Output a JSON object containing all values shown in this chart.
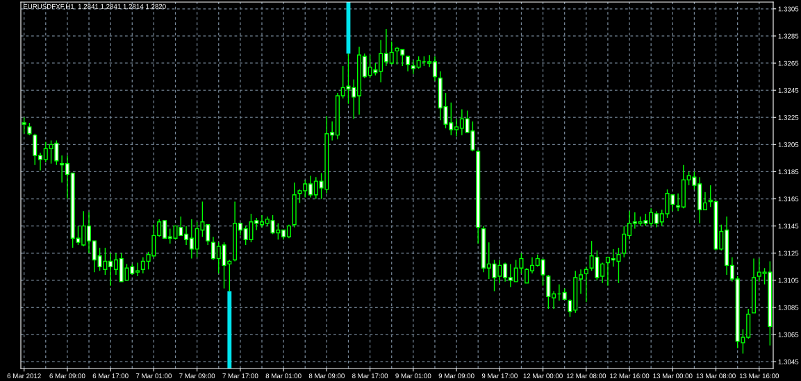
{
  "chart_data": {
    "type": "candlestick",
    "title": "EURUSDFXF,H1  1.2841 1.2841 1.2814 1.2820",
    "color": "#00ff00",
    "grid": true,
    "categories": [
      "6 Mar 2012",
      null,
      null,
      null,
      null,
      null,
      null,
      null,
      "6 Mar 09:00",
      null,
      null,
      null,
      null,
      null,
      null,
      null,
      "6 Mar 17:00",
      null,
      null,
      null,
      null,
      null,
      null,
      null,
      "7 Mar 01:00",
      null,
      null,
      null,
      null,
      null,
      null,
      null,
      "7 Mar 09:00",
      null,
      null,
      null,
      null,
      null,
      null,
      null,
      "7 Mar 17:00",
      null,
      null,
      null,
      null,
      null,
      null,
      null,
      "8 Mar 01:00",
      null,
      null,
      null,
      null,
      null,
      null,
      null,
      "8 Mar 09:00",
      null,
      null,
      null,
      null,
      null,
      null,
      null,
      "8 Mar 17:00",
      null,
      null,
      null,
      null,
      null,
      null,
      null,
      "9 Mar 01:00",
      null,
      null,
      null,
      null,
      null,
      null,
      null,
      "9 Mar 09:00",
      null,
      null,
      null,
      null,
      null,
      null,
      null,
      "9 Mar 17:00",
      null,
      null,
      null,
      null,
      null,
      null,
      null,
      "12 Mar 00:00",
      null,
      null,
      null,
      null,
      null,
      null,
      null,
      "12 Mar 08:00",
      null,
      null,
      null,
      null,
      null,
      null,
      null,
      "12 Mar 16:00",
      null,
      null,
      null,
      null,
      null,
      null,
      null,
      "13 Mar 00:00",
      null,
      null,
      null,
      null,
      null,
      null,
      null,
      "13 Mar 08:00",
      null,
      null,
      null,
      null,
      null,
      null,
      null,
      "13 Mar 16:00",
      null,
      null
    ],
    "ylim": [
      1.304,
      1.331
    ],
    "yticks": [
      1.3045,
      1.3065,
      1.3085,
      1.3105,
      1.3125,
      1.3145,
      1.3165,
      1.3185,
      1.3205,
      1.3225,
      1.3245,
      1.3265,
      1.3285,
      1.3305
    ],
    "ohlc": [
      [
        1.3221,
        1.3225,
        1.3213,
        1.322
      ],
      [
        1.3218,
        1.3221,
        1.3212,
        1.3213
      ],
      [
        1.3212,
        1.3213,
        1.319,
        1.3197
      ],
      [
        1.3197,
        1.3199,
        1.3186,
        1.3194
      ],
      [
        1.3194,
        1.3207,
        1.3192,
        1.3202
      ],
      [
        1.3202,
        1.3208,
        1.3191,
        1.3205
      ],
      [
        1.3206,
        1.3208,
        1.319,
        1.3193
      ],
      [
        1.3191,
        1.3197,
        1.3177,
        1.319
      ],
      [
        1.3191,
        1.3197,
        1.3165,
        1.3183
      ],
      [
        1.3184,
        1.3184,
        1.3129,
        1.3136
      ],
      [
        1.3136,
        1.3145,
        1.3131,
        1.3133
      ],
      [
        1.3131,
        1.3156,
        1.313,
        1.3145
      ],
      [
        1.3145,
        1.3155,
        1.3125,
        1.3134
      ],
      [
        1.3134,
        1.3134,
        1.3111,
        1.312
      ],
      [
        1.3123,
        1.3129,
        1.3112,
        1.3115
      ],
      [
        1.3113,
        1.3129,
        1.3109,
        1.3119
      ],
      [
        1.3119,
        1.3125,
        1.3101,
        1.3115
      ],
      [
        1.3113,
        1.3125,
        1.3109,
        1.312
      ],
      [
        1.3121,
        1.3125,
        1.3104,
        1.3104
      ],
      [
        1.3105,
        1.3117,
        1.3105,
        1.3114
      ],
      [
        1.3115,
        1.3117,
        1.3109,
        1.311
      ],
      [
        1.3111,
        1.3118,
        1.3108,
        1.3112
      ],
      [
        1.3113,
        1.3122,
        1.311,
        1.3119
      ],
      [
        1.3119,
        1.3126,
        1.3113,
        1.3124
      ],
      [
        1.3123,
        1.3146,
        1.3122,
        1.3138
      ],
      [
        1.3138,
        1.315,
        1.3137,
        1.3148
      ],
      [
        1.3149,
        1.3149,
        1.3136,
        1.3136
      ],
      [
        1.3137,
        1.3143,
        1.3132,
        1.3136
      ],
      [
        1.3136,
        1.3145,
        1.3135,
        1.3145
      ],
      [
        1.3144,
        1.3152,
        1.3138,
        1.3138
      ],
      [
        1.3139,
        1.3145,
        1.3131,
        1.3135
      ],
      [
        1.3136,
        1.315,
        1.3121,
        1.3128
      ],
      [
        1.3128,
        1.3148,
        1.3122,
        1.3143
      ],
      [
        1.3142,
        1.3163,
        1.3137,
        1.3148
      ],
      [
        1.3146,
        1.3146,
        1.3131,
        1.3134
      ],
      [
        1.3133,
        1.3137,
        1.312,
        1.3121
      ],
      [
        1.3121,
        1.3133,
        1.311,
        1.313
      ],
      [
        1.3131,
        1.3133,
        1.3099,
        1.3116
      ],
      [
        1.3117,
        1.312,
        1.3097,
        1.3119
      ],
      [
        1.312,
        1.3163,
        1.3119,
        1.3147
      ],
      [
        1.3147,
        1.3147,
        1.3138,
        1.3142
      ],
      [
        1.3143,
        1.3145,
        1.3131,
        1.3135
      ],
      [
        1.3135,
        1.3154,
        1.3133,
        1.3148
      ],
      [
        1.3149,
        1.3151,
        1.3142,
        1.3147
      ],
      [
        1.3146,
        1.3153,
        1.3144,
        1.3148
      ],
      [
        1.3147,
        1.3152,
        1.3145,
        1.315
      ],
      [
        1.3149,
        1.3153,
        1.3139,
        1.314
      ],
      [
        1.314,
        1.3147,
        1.3135,
        1.3142
      ],
      [
        1.3142,
        1.3142,
        1.3135,
        1.3137
      ],
      [
        1.3137,
        1.3146,
        1.3136,
        1.3145
      ],
      [
        1.3146,
        1.3177,
        1.3144,
        1.3168
      ],
      [
        1.3169,
        1.3172,
        1.3162,
        1.3171
      ],
      [
        1.3171,
        1.3179,
        1.3166,
        1.3176
      ],
      [
        1.3176,
        1.3182,
        1.3166,
        1.3168
      ],
      [
        1.3168,
        1.3181,
        1.3165,
        1.3178
      ],
      [
        1.3178,
        1.3184,
        1.3165,
        1.3173
      ],
      [
        1.3172,
        1.3226,
        1.3169,
        1.3213
      ],
      [
        1.3214,
        1.3222,
        1.3208,
        1.3212
      ],
      [
        1.3212,
        1.3243,
        1.3209,
        1.3241
      ],
      [
        1.3241,
        1.3263,
        1.3239,
        1.3247
      ],
      [
        1.3248,
        1.3272,
        1.3235,
        1.3246
      ],
      [
        1.3247,
        1.3253,
        1.3224,
        1.324
      ],
      [
        1.3241,
        1.3277,
        1.3227,
        1.3271
      ],
      [
        1.327,
        1.3272,
        1.3254,
        1.3255
      ],
      [
        1.3256,
        1.3271,
        1.3254,
        1.3262
      ],
      [
        1.326,
        1.3265,
        1.3256,
        1.3258
      ],
      [
        1.3259,
        1.3282,
        1.3251,
        1.3272
      ],
      [
        1.3272,
        1.329,
        1.3263,
        1.3266
      ],
      [
        1.3265,
        1.3281,
        1.3264,
        1.3273
      ],
      [
        1.3274,
        1.3277,
        1.3264,
        1.3276
      ],
      [
        1.3275,
        1.3275,
        1.3263,
        1.3271
      ],
      [
        1.327,
        1.327,
        1.3259,
        1.3264
      ],
      [
        1.3263,
        1.3267,
        1.3257,
        1.3261
      ],
      [
        1.3262,
        1.327,
        1.3261,
        1.3267
      ],
      [
        1.3266,
        1.327,
        1.3263,
        1.3266
      ],
      [
        1.3265,
        1.3271,
        1.3262,
        1.3266
      ],
      [
        1.3266,
        1.327,
        1.3252,
        1.3255
      ],
      [
        1.3254,
        1.3259,
        1.3223,
        1.3232
      ],
      [
        1.3233,
        1.3243,
        1.3217,
        1.322
      ],
      [
        1.3221,
        1.3236,
        1.3212,
        1.3216
      ],
      [
        1.3216,
        1.3224,
        1.3211,
        1.3218
      ],
      [
        1.3217,
        1.3231,
        1.3212,
        1.3224
      ],
      [
        1.3224,
        1.323,
        1.3214,
        1.3214
      ],
      [
        1.3215,
        1.3222,
        1.32,
        1.3201
      ],
      [
        1.32,
        1.3201,
        1.3132,
        1.3144
      ],
      [
        1.3143,
        1.3145,
        1.3111,
        1.3114
      ],
      [
        1.3114,
        1.3133,
        1.3106,
        1.3117
      ],
      [
        1.3117,
        1.312,
        1.3097,
        1.3107
      ],
      [
        1.3108,
        1.312,
        1.3103,
        1.3116
      ],
      [
        1.3117,
        1.3118,
        1.3104,
        1.3107
      ],
      [
        1.3107,
        1.3117,
        1.31,
        1.3105
      ],
      [
        1.3104,
        1.312,
        1.3104,
        1.3114
      ],
      [
        1.3114,
        1.3125,
        1.311,
        1.3121
      ],
      [
        1.3103,
        1.3114,
        1.3103,
        1.3113
      ],
      [
        1.3112,
        1.3122,
        1.311,
        1.3116
      ],
      [
        1.3116,
        1.3124,
        1.3115,
        1.3121
      ],
      [
        1.312,
        1.3121,
        1.3101,
        1.3109
      ],
      [
        1.3108,
        1.3109,
        1.3084,
        1.3093
      ],
      [
        1.3092,
        1.3097,
        1.3084,
        1.3095
      ],
      [
        1.3095,
        1.3102,
        1.309,
        1.3095
      ],
      [
        1.3096,
        1.3099,
        1.3091,
        1.3091
      ],
      [
        1.309,
        1.3091,
        1.3078,
        1.3082
      ],
      [
        1.3083,
        1.3112,
        1.3081,
        1.3107
      ],
      [
        1.3106,
        1.3113,
        1.3095,
        1.3109
      ],
      [
        1.311,
        1.3115,
        1.3089,
        1.3113
      ],
      [
        1.3114,
        1.3134,
        1.3112,
        1.3123
      ],
      [
        1.3122,
        1.3127,
        1.3105,
        1.3107
      ],
      [
        1.3108,
        1.3118,
        1.3103,
        1.3117
      ],
      [
        1.3118,
        1.3122,
        1.3101,
        1.3122
      ],
      [
        1.3121,
        1.3128,
        1.3115,
        1.312
      ],
      [
        1.3119,
        1.3129,
        1.3103,
        1.3124
      ],
      [
        1.3125,
        1.3145,
        1.3122,
        1.3139
      ],
      [
        1.3138,
        1.3156,
        1.3135,
        1.3147
      ],
      [
        1.3148,
        1.3155,
        1.3143,
        1.3147
      ],
      [
        1.3147,
        1.3152,
        1.3145,
        1.3148
      ],
      [
        1.3149,
        1.3154,
        1.3145,
        1.3147
      ],
      [
        1.3147,
        1.3158,
        1.3145,
        1.3155
      ],
      [
        1.3154,
        1.3156,
        1.3144,
        1.3147
      ],
      [
        1.3148,
        1.3157,
        1.3145,
        1.3154
      ],
      [
        1.3154,
        1.3172,
        1.3151,
        1.3169
      ],
      [
        1.3168,
        1.3168,
        1.3156,
        1.3161
      ],
      [
        1.316,
        1.3169,
        1.3156,
        1.3159
      ],
      [
        1.3159,
        1.319,
        1.3158,
        1.3179
      ],
      [
        1.3179,
        1.3185,
        1.3175,
        1.3182
      ],
      [
        1.3181,
        1.3185,
        1.3172,
        1.3175
      ],
      [
        1.3176,
        1.3181,
        1.3147,
        1.3157
      ],
      [
        1.3157,
        1.317,
        1.3157,
        1.3162
      ],
      [
        1.3163,
        1.3175,
        1.3159,
        1.3164
      ],
      [
        1.3163,
        1.3163,
        1.3127,
        1.3128
      ],
      [
        1.3128,
        1.3146,
        1.3127,
        1.3141
      ],
      [
        1.3142,
        1.3152,
        1.3109,
        1.3116
      ],
      [
        1.3116,
        1.3122,
        1.3104,
        1.3106
      ],
      [
        1.3106,
        1.3108,
        1.3055,
        1.306
      ],
      [
        1.3059,
        1.3069,
        1.3051,
        1.3063
      ],
      [
        1.3063,
        1.3084,
        1.3062,
        1.308
      ],
      [
        1.3081,
        1.3121,
        1.3081,
        1.3107
      ],
      [
        1.3108,
        1.3121,
        1.3104,
        1.3111
      ],
      [
        1.311,
        1.3114,
        1.3102,
        1.3111
      ],
      [
        1.3111,
        1.3119,
        1.3057,
        1.3071
      ]
    ],
    "series": [
      {
        "type": "bar",
        "color": "#00e5ee",
        "values": [
          null,
          null,
          null,
          null,
          null,
          null,
          null,
          null,
          null,
          null,
          null,
          null,
          null,
          null,
          null,
          null,
          null,
          null,
          null,
          null,
          null,
          null,
          null,
          null,
          null,
          null,
          null,
          null,
          null,
          null,
          null,
          null,
          null,
          null,
          null,
          null,
          null,
          null,
          0.0057,
          null,
          null,
          null,
          null,
          null,
          null,
          null,
          null,
          null,
          null,
          null,
          null,
          null,
          null,
          null,
          null,
          null,
          null,
          null,
          null,
          null,
          0.0038,
          null,
          null,
          null,
          null,
          null,
          null,
          null,
          null,
          null,
          null,
          null,
          null,
          null,
          null,
          null,
          null,
          null,
          null,
          null,
          null,
          null,
          null,
          null,
          null,
          null,
          null,
          null,
          null,
          null,
          null,
          null,
          null,
          null,
          null,
          null,
          null,
          null,
          null,
          null,
          null,
          null,
          null,
          null,
          null,
          null,
          null,
          null,
          null,
          null,
          null,
          null,
          null,
          null,
          null,
          null,
          null,
          null,
          null,
          null,
          null,
          null,
          null,
          null,
          null,
          null,
          null,
          null,
          null,
          null,
          null,
          null,
          null,
          null,
          null,
          null,
          null,
          null,
          null
        ],
        "base": [
          null,
          null,
          null,
          null,
          null,
          null,
          null,
          null,
          null,
          null,
          null,
          null,
          null,
          null,
          null,
          null,
          null,
          null,
          null,
          null,
          null,
          null,
          null,
          null,
          null,
          null,
          null,
          null,
          null,
          null,
          null,
          null,
          null,
          null,
          null,
          null,
          null,
          null,
          1.304,
          null,
          null,
          null,
          null,
          null,
          null,
          null,
          null,
          null,
          null,
          null,
          null,
          null,
          null,
          null,
          null,
          null,
          null,
          null,
          null,
          null,
          1.3272,
          null,
          null,
          null,
          null,
          null,
          null,
          null,
          null,
          null,
          null,
          null,
          null,
          null,
          null,
          null,
          null,
          null,
          null,
          null,
          null,
          null,
          null,
          null,
          null,
          null,
          null,
          null,
          null,
          null,
          null,
          null,
          null,
          null,
          null,
          null,
          null,
          null,
          null,
          null,
          null,
          null,
          null,
          null,
          null,
          null,
          null,
          null,
          null,
          null,
          null,
          null,
          null,
          null,
          null,
          null,
          null,
          null,
          null,
          null,
          null,
          null,
          null,
          null,
          null,
          null,
          null,
          null,
          null,
          null,
          null,
          null,
          null,
          null,
          null,
          null,
          null,
          null,
          null
        ]
      }
    ]
  }
}
